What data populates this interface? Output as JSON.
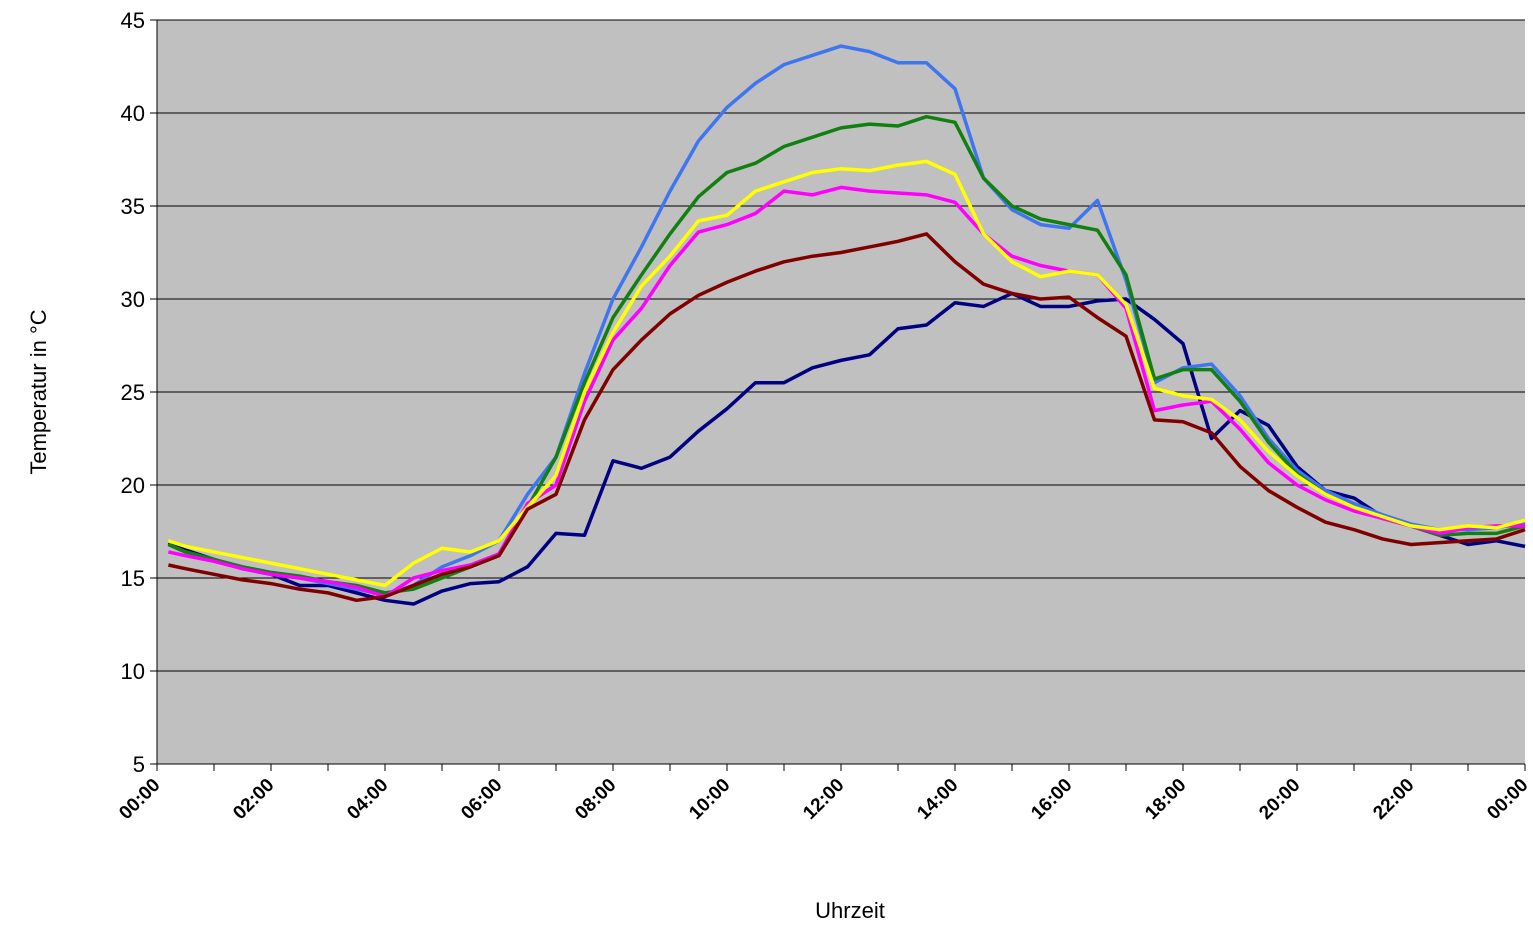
{
  "chart_data": {
    "type": "line",
    "x_label": "Uhrzeit",
    "y_label": "Temperatur in °C",
    "x": [
      0.2,
      0.5,
      1,
      1.5,
      2,
      2.5,
      3,
      3.5,
      4,
      4.5,
      5,
      5.5,
      6,
      6.5,
      7,
      7.5,
      8,
      8.5,
      9,
      9.5,
      10,
      10.5,
      11,
      11.5,
      12,
      12.5,
      13,
      13.5,
      14,
      14.5,
      15,
      15.5,
      16,
      16.5,
      17,
      17.5,
      18,
      18.5,
      19,
      19.5,
      20,
      20.5,
      21,
      21.5,
      22,
      22.5,
      23,
      23.5,
      24
    ],
    "series": [
      {
        "color": "#000080",
        "values": [
          16.9,
          16.5,
          16.0,
          15.5,
          15.2,
          14.6,
          14.6,
          14.2,
          13.8,
          13.6,
          14.3,
          14.7,
          14.8,
          15.6,
          17.4,
          17.3,
          21.3,
          20.9,
          21.5,
          22.9,
          24.1,
          25.5,
          25.5,
          26.3,
          26.7,
          27.0,
          28.4,
          28.6,
          29.8,
          29.6,
          30.3,
          29.6,
          29.6,
          29.9,
          30.0,
          28.9,
          27.6,
          22.5,
          24.0,
          23.2,
          21.0,
          19.7,
          19.3,
          18.3,
          17.8,
          17.3,
          16.8,
          17.0,
          16.7
        ]
      },
      {
        "color": "#3f76f0",
        "values": [
          16.8,
          16.4,
          16.0,
          15.5,
          15.2,
          15.0,
          14.7,
          14.4,
          14.1,
          14.6,
          15.6,
          16.2,
          17.0,
          19.5,
          21.5,
          26.0,
          30.0,
          32.8,
          35.8,
          38.5,
          40.3,
          41.6,
          42.6,
          43.1,
          43.6,
          43.3,
          42.7,
          42.7,
          41.3,
          36.5,
          34.8,
          34.0,
          33.8,
          35.3,
          31.0,
          25.5,
          26.3,
          26.5,
          24.8,
          22.5,
          20.8,
          19.7,
          19.0,
          18.4,
          17.9,
          17.6,
          17.6,
          17.7,
          18.0
        ]
      },
      {
        "color": "#118011",
        "values": [
          16.8,
          16.4,
          16.0,
          15.6,
          15.3,
          15.1,
          14.8,
          14.6,
          14.2,
          14.4,
          15.0,
          15.6,
          16.3,
          18.8,
          21.5,
          25.5,
          29.0,
          31.3,
          33.5,
          35.5,
          36.8,
          37.3,
          38.2,
          38.7,
          39.2,
          39.4,
          39.3,
          39.8,
          39.5,
          36.5,
          35.0,
          34.3,
          34.0,
          33.7,
          31.3,
          25.7,
          26.2,
          26.2,
          24.5,
          22.3,
          20.6,
          19.5,
          18.8,
          18.2,
          17.8,
          17.3,
          17.4,
          17.4,
          17.8
        ]
      },
      {
        "color": "#ff00ff",
        "values": [
          16.4,
          16.2,
          15.9,
          15.5,
          15.2,
          15.0,
          14.8,
          14.5,
          14.0,
          15.0,
          15.4,
          15.7,
          16.3,
          19.0,
          20.0,
          24.5,
          27.8,
          29.5,
          31.8,
          33.6,
          34.0,
          34.6,
          35.8,
          35.6,
          36.0,
          35.8,
          35.7,
          35.6,
          35.2,
          33.5,
          32.3,
          31.8,
          31.5,
          31.3,
          29.5,
          24.0,
          24.3,
          24.5,
          23.0,
          21.2,
          20.0,
          19.2,
          18.6,
          18.2,
          17.8,
          17.4,
          17.7,
          17.8,
          17.8
        ]
      },
      {
        "color": "#ffff00",
        "values": [
          17.0,
          16.7,
          16.4,
          16.1,
          15.8,
          15.5,
          15.2,
          14.9,
          14.6,
          15.8,
          16.6,
          16.4,
          17.0,
          18.8,
          20.5,
          25.0,
          28.2,
          30.7,
          32.3,
          34.2,
          34.5,
          35.8,
          36.3,
          36.8,
          37.0,
          36.9,
          37.2,
          37.4,
          36.7,
          33.5,
          32.0,
          31.2,
          31.5,
          31.3,
          29.7,
          25.2,
          24.8,
          24.6,
          23.5,
          21.8,
          20.5,
          19.5,
          18.8,
          18.3,
          17.8,
          17.6,
          17.8,
          17.7,
          18.1
        ]
      },
      {
        "color": "#800000",
        "values": [
          15.7,
          15.5,
          15.2,
          14.9,
          14.7,
          14.4,
          14.2,
          13.8,
          14.0,
          14.6,
          15.2,
          15.6,
          16.2,
          18.7,
          19.5,
          23.5,
          26.2,
          27.8,
          29.2,
          30.2,
          30.9,
          31.5,
          32.0,
          32.3,
          32.5,
          32.8,
          33.1,
          33.5,
          32.0,
          30.8,
          30.3,
          30.0,
          30.1,
          29.0,
          28.0,
          23.5,
          23.4,
          22.8,
          21.0,
          19.7,
          18.8,
          18.0,
          17.6,
          17.1,
          16.8,
          16.9,
          17.0,
          17.1,
          17.6
        ]
      }
    ],
    "xlim": [
      0,
      24
    ],
    "ylim": [
      5,
      45
    ],
    "xticks": [
      {
        "value": 0,
        "label": "00:00"
      },
      {
        "value": 2,
        "label": "02:00"
      },
      {
        "value": 4,
        "label": "04:00"
      },
      {
        "value": 6,
        "label": "06:00"
      },
      {
        "value": 8,
        "label": "08:00"
      },
      {
        "value": 10,
        "label": "10:00"
      },
      {
        "value": 12,
        "label": "12:00"
      },
      {
        "value": 14,
        "label": "14:00"
      },
      {
        "value": 16,
        "label": "16:00"
      },
      {
        "value": 18,
        "label": "18:00"
      },
      {
        "value": 20,
        "label": "20:00"
      },
      {
        "value": 22,
        "label": "22:00"
      },
      {
        "value": 24,
        "label": "00:00"
      }
    ],
    "yticks": [
      5,
      10,
      15,
      20,
      25,
      30,
      35,
      40,
      45
    ],
    "grid": true
  }
}
